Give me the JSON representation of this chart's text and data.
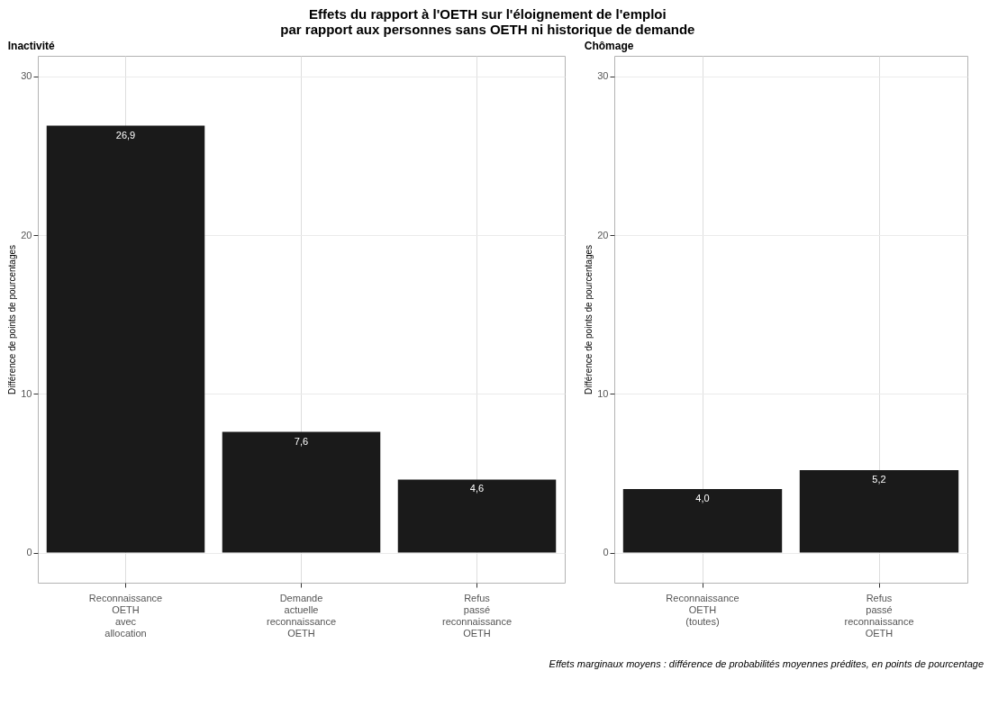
{
  "chart_data": [
    {
      "type": "bar",
      "title": "Effets du rapport à l'OETH sur l'éloignement de l'emploi\npar rapport aux personnes sans OETH ni historique de demande",
      "subtitle": "Inactivité",
      "ylabel": "Différence de points de pourcentages",
      "categories": [
        "Reconnaissance OETH avec allocation",
        "Demande actuelle reconnaissance OETH",
        "Refus passé reconnaissance OETH"
      ],
      "values": [
        26.9,
        7.6,
        4.6
      ],
      "value_labels": [
        "26,9",
        "7,6",
        "4,6"
      ],
      "color": "#1a1a1a",
      "ylim": [
        -1.9,
        31.3
      ],
      "yticks": [
        0,
        10,
        20,
        30
      ],
      "grid": true
    },
    {
      "type": "bar",
      "subtitle": "Chômage",
      "ylabel": "Différence de points de pourcentages",
      "categories": [
        "Reconnaissance OETH (toutes)",
        "Refus passé reconnaissance OETH"
      ],
      "values": [
        4.0,
        5.2
      ],
      "value_labels": [
        "4,0",
        "5,2"
      ],
      "color": "#1a1a1a",
      "ylim": [
        -1.9,
        31.3
      ],
      "yticks": [
        0,
        10,
        20,
        30
      ],
      "grid": true,
      "annotations": [
        "Effets marginaux moyens : différence de probabilités moyennes prédites, en points de pourcentage"
      ]
    }
  ]
}
